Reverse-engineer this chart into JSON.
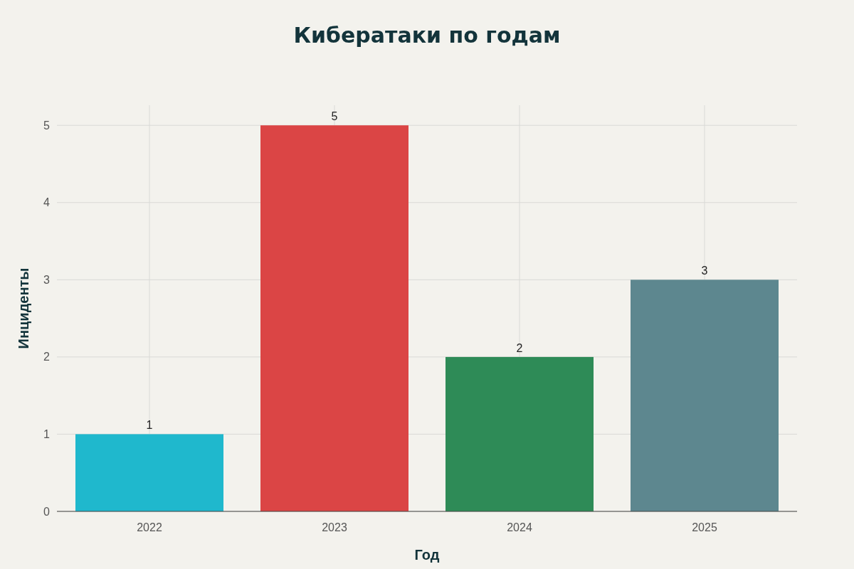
{
  "chart_data": {
    "type": "bar",
    "title": "Кибератаки по годам",
    "xlabel": "Год",
    "ylabel": "Инциденты",
    "categories": [
      "2022",
      "2023",
      "2024",
      "2025"
    ],
    "values": [
      1,
      5,
      2,
      3
    ],
    "colors": [
      "#1fb8cd",
      "#db4545",
      "#2e8b57",
      "#5d878f"
    ],
    "ylim": [
      0,
      5.26
    ],
    "yticks": [
      0,
      1,
      2,
      3,
      4,
      5
    ],
    "grid": true,
    "data_labels": true
  }
}
